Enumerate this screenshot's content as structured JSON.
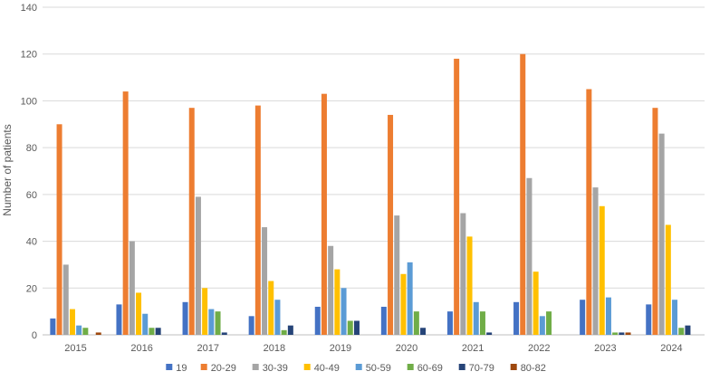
{
  "chart_data": {
    "type": "bar",
    "title": "",
    "xlabel": "",
    "ylabel": "Number of patients",
    "ylim": [
      0,
      140
    ],
    "yticks": [
      0,
      20,
      40,
      60,
      80,
      100,
      120,
      140
    ],
    "grid": "horizontal",
    "legend_position": "bottom",
    "categories": [
      "2015",
      "2016",
      "2017",
      "2018",
      "2019",
      "2020",
      "2021",
      "2022",
      "2023",
      "2024"
    ],
    "series": [
      {
        "name": "19",
        "color": "#4472C4",
        "values": [
          7,
          13,
          14,
          8,
          12,
          12,
          10,
          14,
          15,
          13
        ]
      },
      {
        "name": "20-29",
        "color": "#ED7D31",
        "values": [
          90,
          104,
          97,
          98,
          103,
          94,
          118,
          120,
          105,
          97
        ]
      },
      {
        "name": "30-39",
        "color": "#A5A5A5",
        "values": [
          30,
          40,
          59,
          46,
          38,
          51,
          52,
          67,
          63,
          86
        ]
      },
      {
        "name": "40-49",
        "color": "#FFC000",
        "values": [
          11,
          18,
          20,
          23,
          28,
          26,
          42,
          27,
          55,
          47
        ]
      },
      {
        "name": "50-59",
        "color": "#5B9BD5",
        "values": [
          4,
          9,
          11,
          15,
          20,
          31,
          14,
          8,
          16,
          15
        ]
      },
      {
        "name": "60-69",
        "color": "#70AD47",
        "values": [
          3,
          3,
          10,
          2,
          6,
          10,
          10,
          10,
          1,
          3
        ]
      },
      {
        "name": "70-79",
        "color": "#264478",
        "values": [
          0,
          3,
          1,
          4,
          6,
          3,
          1,
          0,
          1,
          4
        ]
      },
      {
        "name": "80-82",
        "color": "#9E480E",
        "values": [
          1,
          0,
          0,
          0,
          0,
          0,
          0,
          0,
          1,
          0
        ]
      }
    ]
  }
}
